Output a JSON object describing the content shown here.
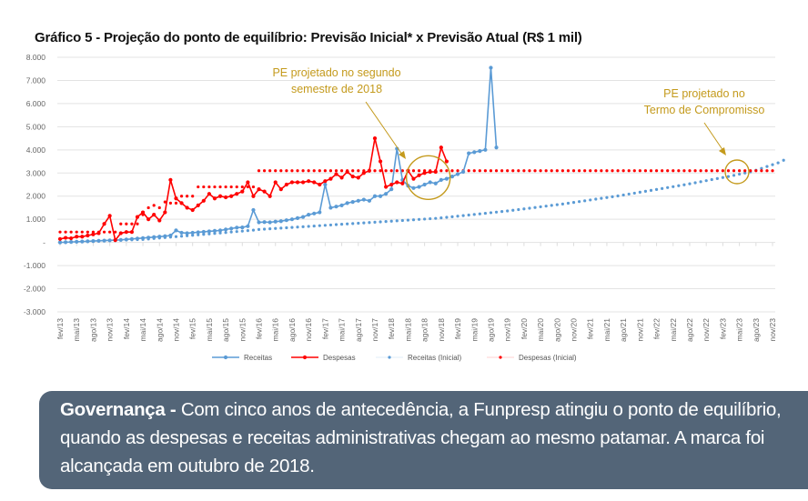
{
  "chart_data": {
    "type": "line",
    "title": "Gráfico 5 - Projeção do ponto de equilíbrio: Previsão Inicial* x Previsão Atual (R$ 1 mil)",
    "xlabel": "",
    "ylabel": "",
    "ylim": [
      -3000,
      8000
    ],
    "yticks": [
      8000,
      7000,
      6000,
      5000,
      4000,
      3000,
      2000,
      1000,
      0,
      -1000,
      -2000,
      -3000
    ],
    "ytick_labels": [
      "8.000",
      "7.000",
      "6.000",
      "5.000",
      "4.000",
      "3.000",
      "2.000",
      "1.000",
      "-",
      "-1.000",
      "-2.000",
      "-3.000"
    ],
    "x_start": "fev/13",
    "x_frequency": "monthly",
    "x_tick_labels": [
      "fev/13",
      "mai/13",
      "ago/13",
      "nov/13",
      "fev/14",
      "mai/14",
      "ago/14",
      "nov/14",
      "fev/15",
      "mai/15",
      "ago/15",
      "nov/15",
      "fev/16",
      "mai/16",
      "ago/16",
      "nov/16",
      "fev/17",
      "mai/17",
      "ago/17",
      "nov/17",
      "fev/18",
      "mai/18",
      "ago/18",
      "nov/18",
      "fev/19",
      "mai/19",
      "ago/19",
      "nov/19",
      "fev/20",
      "mai/20",
      "ago/20",
      "nov/20",
      "fev/21",
      "mai/21",
      "ago/21",
      "nov/21",
      "fev/22",
      "mai/22",
      "ago/22",
      "nov/22",
      "fev/23",
      "mai/23",
      "ago/23",
      "nov/23"
    ],
    "grid": true,
    "legend_position": "bottom",
    "series": [
      {
        "name": "Receitas",
        "color": "#5b9bd5",
        "style": "solid",
        "values": [
          0,
          10,
          20,
          30,
          40,
          50,
          60,
          70,
          80,
          90,
          100,
          110,
          130,
          150,
          170,
          190,
          210,
          230,
          250,
          270,
          300,
          520,
          420,
          400,
          420,
          440,
          460,
          480,
          500,
          520,
          560,
          600,
          640,
          650,
          700,
          1400,
          870,
          880,
          870,
          900,
          920,
          960,
          1000,
          1050,
          1100,
          1200,
          1250,
          1300,
          2500,
          1500,
          1550,
          1600,
          1700,
          1750,
          1800,
          1850,
          1800,
          2000,
          2000,
          2100,
          2300,
          4050,
          2700,
          2450,
          2350,
          2400,
          2500,
          2600,
          2550,
          2700,
          2750,
          2850,
          2950,
          3050,
          3850,
          3900,
          3950,
          4000,
          7550,
          4100
        ]
      },
      {
        "name": "Despesas",
        "color": "#ff0000",
        "style": "solid",
        "values": [
          150,
          200,
          180,
          250,
          250,
          300,
          350,
          400,
          800,
          1150,
          100,
          400,
          450,
          450,
          1100,
          1300,
          1000,
          1200,
          950,
          1300,
          2700,
          1900,
          1700,
          1500,
          1400,
          1600,
          1800,
          2100,
          1900,
          2000,
          1950,
          2000,
          2100,
          2200,
          2600,
          2000,
          2300,
          2200,
          2000,
          2600,
          2300,
          2500,
          2600,
          2600,
          2600,
          2650,
          2600,
          2500,
          2650,
          2750,
          2950,
          2800,
          3050,
          2850,
          2800,
          3000,
          3100,
          4500,
          3500,
          2400,
          2500,
          2600,
          2550,
          3100,
          2750,
          2900,
          3000,
          3050,
          3050,
          4100,
          3500
        ]
      },
      {
        "name": "Receitas (Inicial)",
        "color": "#5b9bd5",
        "style": "dotted",
        "values": [
          10,
          18,
          26,
          34,
          42,
          50,
          58,
          66,
          74,
          82,
          90,
          98,
          106,
          114,
          122,
          130,
          150,
          170,
          190,
          210,
          230,
          250,
          270,
          290,
          310,
          330,
          350,
          370,
          390,
          410,
          430,
          450,
          470,
          490,
          510,
          530,
          560,
          575,
          590,
          605,
          620,
          635,
          650,
          665,
          680,
          695,
          710,
          725,
          740,
          755,
          770,
          785,
          800,
          815,
          830,
          845,
          860,
          875,
          890,
          905,
          920,
          935,
          950,
          965,
          980,
          995,
          1010,
          1025,
          1040,
          1060,
          1085,
          1110,
          1135,
          1160,
          1185,
          1210,
          1235,
          1260,
          1285,
          1310,
          1335,
          1360,
          1390,
          1420,
          1450,
          1480,
          1510,
          1540,
          1570,
          1600,
          1630,
          1660,
          1695,
          1730,
          1765,
          1800,
          1835,
          1870,
          1905,
          1940,
          1975,
          2010,
          2050,
          2090,
          2130,
          2170,
          2210,
          2250,
          2290,
          2330,
          2370,
          2410,
          2450,
          2490,
          2535,
          2580,
          2625,
          2670,
          2715,
          2760,
          2805,
          2850,
          2900,
          2950,
          3000,
          3050,
          3120,
          3200,
          3280,
          3360,
          3440,
          3550
        ]
      },
      {
        "name": "Despesas (Inicial)",
        "color": "#ff0000",
        "style": "dotted",
        "values": [
          450,
          450,
          450,
          450,
          450,
          450,
          450,
          450,
          450,
          450,
          450,
          800,
          800,
          800,
          800,
          1200,
          1500,
          1600,
          1500,
          1750,
          1700,
          1700,
          2000,
          2000,
          2000,
          2400,
          2400,
          2400,
          2400,
          2400,
          2400,
          2400,
          2400,
          2400,
          2400,
          2400,
          3100,
          3100,
          3100,
          3100,
          3100,
          3100,
          3100,
          3100,
          3100,
          3100,
          3100,
          3100,
          3100,
          3100,
          3100,
          3100,
          3100,
          3100,
          3100,
          3100,
          3100,
          3100,
          3100,
          3100,
          3100,
          3100,
          3100,
          3100,
          3100,
          3100,
          3100,
          3100,
          3100,
          3100,
          3100,
          3100,
          3100,
          3100,
          3100,
          3100,
          3100,
          3100,
          3100,
          3100,
          3100,
          3100,
          3100,
          3100,
          3100,
          3100,
          3100,
          3100,
          3100,
          3100,
          3100,
          3100,
          3100,
          3100,
          3100,
          3100,
          3100,
          3100,
          3100,
          3100,
          3100,
          3100,
          3100,
          3100,
          3100,
          3100,
          3100,
          3100,
          3100,
          3100,
          3100,
          3100,
          3100,
          3100,
          3100,
          3100,
          3100,
          3100,
          3100,
          3100,
          3100,
          3100,
          3100,
          3100,
          3100,
          3100,
          3100,
          3100,
          3100,
          3100
        ]
      }
    ],
    "annotations": [
      {
        "text_lines": [
          "PE projetado no segundo",
          "semestre de 2018"
        ],
        "target_month_index": 67,
        "target_value": 3000
      },
      {
        "text_lines": [
          "PE projetado no",
          "Termo de Compromisso"
        ],
        "target_month_index": 123,
        "target_value": 3100
      }
    ],
    "annotation_color": "#c49a1c"
  },
  "panel": {
    "bold": "Governança -",
    "text": " Com cinco anos de antecedência, a Funpresp atingiu o ponto de equilíbrio, quando as despesas e receitas administrativas chegam ao mesmo patamar. A marca foi alcançada em outubro de 2018.",
    "background": "#536578"
  }
}
